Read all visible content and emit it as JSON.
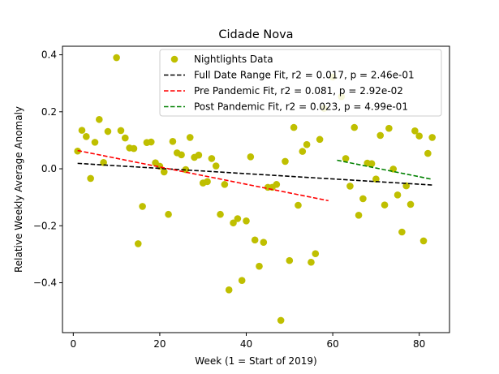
{
  "chart_data": {
    "type": "scatter",
    "title": "Cidade Nova",
    "xlabel": "Week (1 = Start of 2019)",
    "ylabel": "Relative Weekly Average Anomaly",
    "xlim": [
      -2.5,
      87
    ],
    "ylim": [
      -0.575,
      0.43
    ],
    "xticks": [
      0,
      20,
      40,
      60,
      80
    ],
    "yticks": [
      -0.4,
      -0.2,
      0.0,
      0.2,
      0.4
    ],
    "xtick_labels": [
      "0",
      "20",
      "40",
      "60",
      "80"
    ],
    "ytick_labels": [
      "−0.4",
      "−0.2",
      "0.0",
      "0.2",
      "0.4"
    ],
    "legend_position": "upper right",
    "series": [
      {
        "name": "Nightlights Data",
        "kind": "points",
        "color": "#bfbf00",
        "points": [
          [
            1,
            0.062
          ],
          [
            2,
            0.135
          ],
          [
            3,
            0.113
          ],
          [
            4,
            -0.034
          ],
          [
            5,
            0.093
          ],
          [
            6,
            0.173
          ],
          [
            7,
            0.022
          ],
          [
            8,
            0.131
          ],
          [
            10,
            0.39
          ],
          [
            11,
            0.134
          ],
          [
            12,
            0.108
          ],
          [
            13,
            0.073
          ],
          [
            14,
            0.071
          ],
          [
            15,
            -0.263
          ],
          [
            16,
            -0.132
          ],
          [
            17,
            0.092
          ],
          [
            18,
            0.094
          ],
          [
            19,
            0.021
          ],
          [
            20,
            0.009
          ],
          [
            21,
            -0.011
          ],
          [
            22,
            -0.16
          ],
          [
            23,
            0.096
          ],
          [
            24,
            0.056
          ],
          [
            25,
            0.049
          ],
          [
            26,
            -0.003
          ],
          [
            27,
            0.11
          ],
          [
            28,
            0.04
          ],
          [
            29,
            0.048
          ],
          [
            30,
            -0.05
          ],
          [
            31,
            -0.045
          ],
          [
            32,
            0.036
          ],
          [
            33,
            0.01
          ],
          [
            34,
            -0.16
          ],
          [
            35,
            -0.055
          ],
          [
            36,
            -0.425
          ],
          [
            37,
            -0.19
          ],
          [
            38,
            -0.175
          ],
          [
            39,
            -0.392
          ],
          [
            40,
            -0.183
          ],
          [
            41,
            0.042
          ],
          [
            42,
            -0.25
          ],
          [
            43,
            -0.342
          ],
          [
            44,
            -0.258
          ],
          [
            45,
            -0.065
          ],
          [
            46,
            -0.065
          ],
          [
            47,
            -0.055
          ],
          [
            48,
            -0.532
          ],
          [
            49,
            0.026
          ],
          [
            50,
            -0.322
          ],
          [
            51,
            0.145
          ],
          [
            52,
            -0.128
          ],
          [
            53,
            0.061
          ],
          [
            54,
            0.085
          ],
          [
            55,
            -0.328
          ],
          [
            56,
            -0.298
          ],
          [
            57,
            0.103
          ],
          [
            58,
            0.212
          ],
          [
            60,
            0.322
          ],
          [
            62,
            0.253
          ],
          [
            63,
            0.036
          ],
          [
            64,
            -0.061
          ],
          [
            65,
            0.145
          ],
          [
            66,
            -0.163
          ],
          [
            67,
            -0.105
          ],
          [
            68,
            0.02
          ],
          [
            69,
            0.018
          ],
          [
            70,
            -0.036
          ],
          [
            71,
            0.117
          ],
          [
            72,
            -0.127
          ],
          [
            73,
            0.142
          ],
          [
            74,
            -0.001
          ],
          [
            75,
            -0.092
          ],
          [
            76,
            -0.222
          ],
          [
            77,
            -0.06
          ],
          [
            78,
            -0.125
          ],
          [
            79,
            0.133
          ],
          [
            80,
            0.115
          ],
          [
            81,
            -0.253
          ],
          [
            82,
            0.054
          ],
          [
            83,
            0.11
          ]
        ]
      },
      {
        "name": "Full Date Range Fit, r2 = 0.017, p = 2.46e-01",
        "kind": "line",
        "color": "#000000",
        "points": [
          [
            1,
            0.019
          ],
          [
            83,
            -0.057
          ]
        ]
      },
      {
        "name": "Pre Pandemic Fit, r2 = 0.081, p = 2.92e-02",
        "kind": "line",
        "color": "#ff0000",
        "points": [
          [
            1,
            0.064
          ],
          [
            59,
            -0.112
          ]
        ]
      },
      {
        "name": "Post Pandemic Fit, r2 = 0.023, p = 4.99e-01",
        "kind": "line",
        "color": "#008000",
        "points": [
          [
            61,
            0.03
          ],
          [
            83,
            -0.037
          ]
        ]
      }
    ]
  }
}
